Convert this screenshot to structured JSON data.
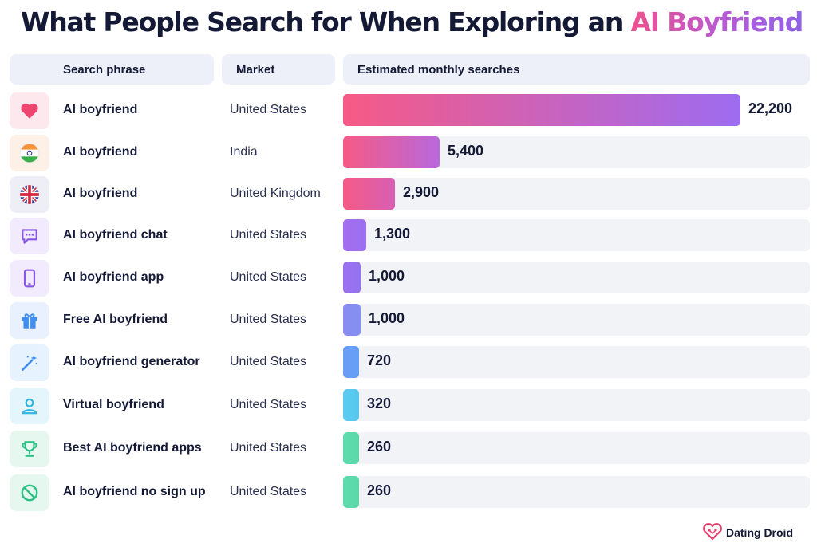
{
  "title": {
    "main": "What People Search for When Exploring an ",
    "highlight": "AI Boyfriend"
  },
  "headers": {
    "phrase": "Search phrase",
    "market": "Market",
    "estimate": "Estimated monthly searches"
  },
  "chart_data": {
    "type": "bar",
    "orientation": "horizontal",
    "title": "What People Search for When Exploring an AI Boyfriend",
    "value_label": "Estimated monthly searches",
    "xlim": [
      0,
      22200
    ],
    "grid": false,
    "rows": [
      {
        "phrase": "AI boyfriend",
        "market": "United States",
        "value": 22200,
        "value_label": "22,200",
        "icon": "heart-icon",
        "icon_bg": "#fde8ee",
        "color_start": "#f65a85",
        "color_end": "#9d6cf0"
      },
      {
        "phrase": "AI boyfriend",
        "market": "India",
        "value": 5400,
        "value_label": "5,400",
        "icon": "india-flag-icon",
        "icon_bg": "#fdf0e6",
        "color_start": "#f65a85",
        "color_end": "#b968dc"
      },
      {
        "phrase": "AI boyfriend",
        "market": "United Kingdom",
        "value": 2900,
        "value_label": "2,900",
        "icon": "uk-flag-icon",
        "icon_bg": "#eeeef7",
        "color_start": "#f65a85",
        "color_end": "#d65fb4"
      },
      {
        "phrase": "AI boyfriend chat",
        "market": "United States",
        "value": 1300,
        "value_label": "1,300",
        "icon": "chat-bubble-icon",
        "icon_bg": "#f1ebfd",
        "color_start": "#a66ef0",
        "color_end": "#9a6ff0"
      },
      {
        "phrase": "AI boyfriend app",
        "market": "United States",
        "value": 1000,
        "value_label": "1,000",
        "icon": "smartphone-icon",
        "icon_bg": "#f1ebfd",
        "color_start": "#9d72f1",
        "color_end": "#9272f1"
      },
      {
        "phrase": "Free AI boyfriend",
        "market": "United States",
        "value": 1000,
        "value_label": "1,000",
        "icon": "gift-icon",
        "icon_bg": "#e8f1fd",
        "color_start": "#8a8cf2",
        "color_end": "#8390f2"
      },
      {
        "phrase": "AI boyfriend generator",
        "market": "United States",
        "value": 720,
        "value_label": "720",
        "icon": "magic-wand-icon",
        "icon_bg": "#e6f2fd",
        "color_start": "#6b9cf5",
        "color_end": "#64a0f5"
      },
      {
        "phrase": "Virtual boyfriend",
        "market": "United States",
        "value": 320,
        "value_label": "320",
        "icon": "user-icon",
        "icon_bg": "#e4f5fb",
        "color_start": "#5ccbf0",
        "color_end": "#55c7ee"
      },
      {
        "phrase": "Best AI boyfriend apps",
        "market": "United States",
        "value": 260,
        "value_label": "260",
        "icon": "trophy-icon",
        "icon_bg": "#e5f7ef",
        "color_start": "#5fdcae",
        "color_end": "#59d8a8"
      },
      {
        "phrase": "AI boyfriend no sign up",
        "market": "United States",
        "value": 260,
        "value_label": "260",
        "icon": "no-sign-icon",
        "icon_bg": "#e5f7ef",
        "color_start": "#5fdcae",
        "color_end": "#59d8a8"
      }
    ]
  },
  "brand": {
    "name": "Dating Droid",
    "logo_icon": "heart-circuit-icon"
  }
}
